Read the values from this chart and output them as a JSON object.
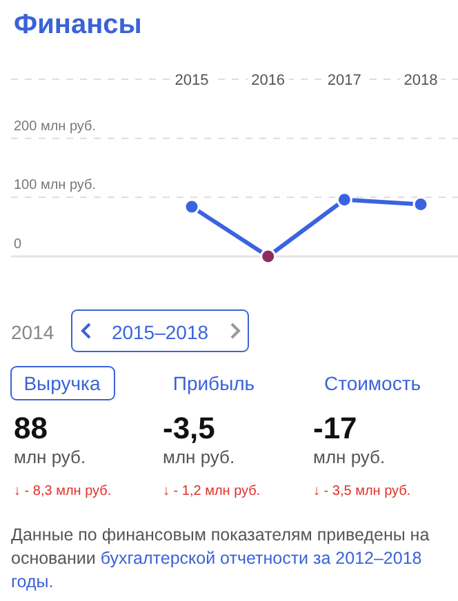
{
  "chart_data": [
    {
      "type": "line",
      "title": "Финансы",
      "categories": [
        "2015",
        "2016",
        "2017",
        "2018"
      ],
      "series": [
        {
          "color": "#3b63e0",
          "colors": [
            "#3b63e0",
            "#8e2c5c",
            "#3b63e0",
            "#3b63e0"
          ],
          "values": [
            84,
            0,
            96,
            88
          ]
        }
      ],
      "ylim": [
        0,
        300
      ],
      "yticks": [
        {
          "value": 0,
          "label": "0"
        },
        {
          "value": 100,
          "label": "100 млн руб."
        },
        {
          "value": 200,
          "label": "200 млн руб."
        }
      ],
      "grid": "y",
      "marker": "circle",
      "line_style": "solid"
    },
    {
      "type": "other",
      "annotations": [
        "2014",
        "2015–2018",
        "Выручка",
        "Прибыль",
        "Стоимость",
        "88",
        "-3,5",
        "-17",
        "млн руб.",
        "млн руб.",
        "млн руб.",
        "↓ - 8,3 млн руб.",
        "↓ - 1,2 млн руб.",
        "↓ - 3,5 млн руб.",
        "Данные по финансовым показателям приведены на основании",
        "бухгалтерской отчетности за 2012–2018 годы."
      ]
    }
  ]
}
